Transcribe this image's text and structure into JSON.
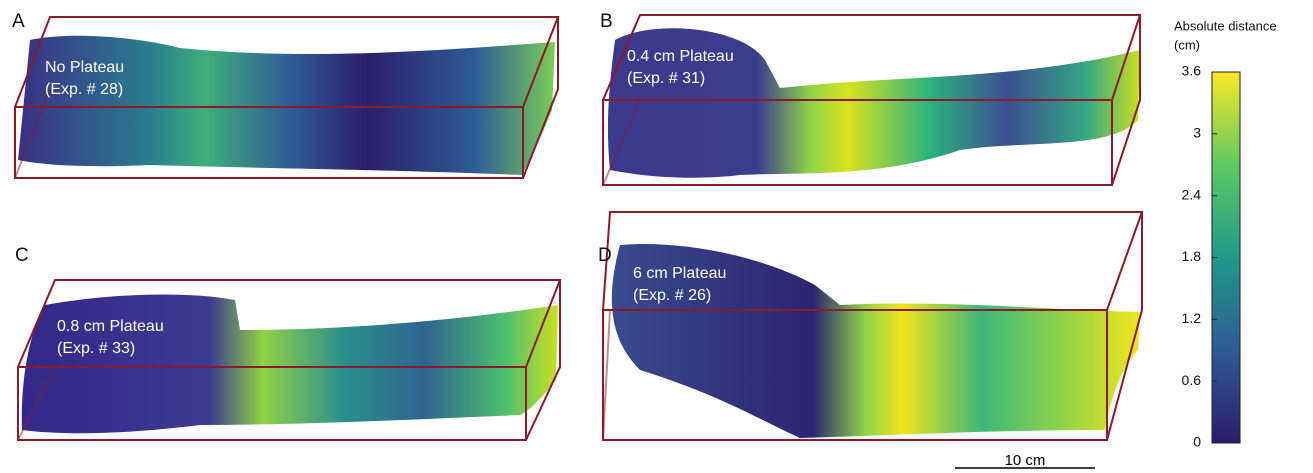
{
  "panels": [
    {
      "letter": "A",
      "caption": [
        "No Plateau",
        "(Exp. # 28)"
      ]
    },
    {
      "letter": "B",
      "caption": [
        "0.4 cm Plateau",
        "(Exp. # 31)"
      ]
    },
    {
      "letter": "C",
      "caption": [
        "0.8 cm Plateau",
        "(Exp. # 33)"
      ]
    },
    {
      "letter": "D",
      "caption": [
        "6 cm Plateau",
        "(Exp. # 26)"
      ]
    }
  ],
  "colorbar": {
    "title": [
      "Absolute distance",
      "(cm)"
    ],
    "range": [
      0,
      3.6
    ],
    "ticks": [
      0,
      0.6,
      1.2,
      1.8,
      2.4,
      3,
      3.6
    ]
  },
  "scalebar": {
    "label": "10 cm"
  }
}
